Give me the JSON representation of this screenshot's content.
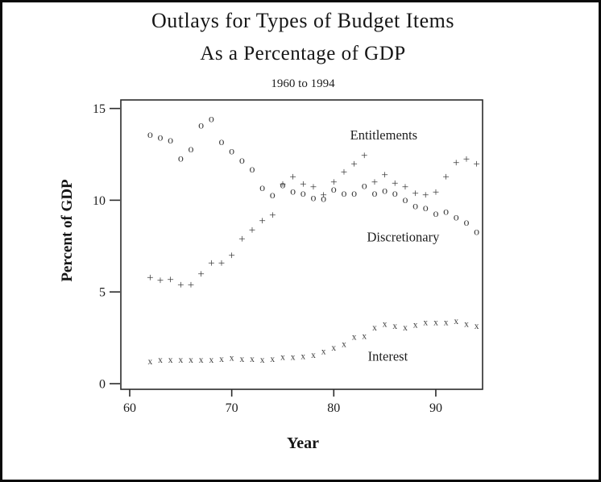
{
  "page": {
    "title_line1": "Outlays for Types of Budget Items",
    "title_line2": "As a Percentage of GDP",
    "subtitle": "1960 to 1994"
  },
  "colors": {
    "ink": "#1d1d1d",
    "marker": "#3d3d3d",
    "frame": "#2b2b2b",
    "background": "#ffffff"
  },
  "chart_data": {
    "type": "scatter",
    "title": "Outlays for Types of Budget Items",
    "subtitle": "As a Percentage of GDP",
    "date_range": "1960 to 1994",
    "xlabel": "Year",
    "ylabel": "Percent of GDP",
    "x_ticks": [
      60,
      70,
      80,
      90
    ],
    "y_ticks": [
      0,
      5,
      10,
      15
    ],
    "xlim": [
      1959,
      1996.5
    ],
    "ylim": [
      -0.3,
      15.4
    ],
    "grid": false,
    "legend_position": "inline-labels",
    "years": [
      1962,
      1963,
      1964,
      1965,
      1966,
      1967,
      1968,
      1969,
      1970,
      1971,
      1972,
      1973,
      1974,
      1975,
      1976,
      1977,
      1978,
      1979,
      1980,
      1981,
      1982,
      1983,
      1984,
      1985,
      1986,
      1987,
      1988,
      1989,
      1990,
      1991,
      1992,
      1993,
      1994
    ],
    "series": [
      {
        "name": "Entitlements",
        "marker": "+",
        "label": {
          "x": 1984.9,
          "y": 13.55
        },
        "values": [
          5.8,
          5.65,
          5.7,
          5.4,
          5.4,
          6.0,
          6.6,
          6.6,
          7.0,
          7.9,
          8.4,
          8.9,
          9.2,
          10.9,
          11.3,
          10.9,
          10.75,
          10.3,
          11.0,
          11.55,
          12.0,
          12.45,
          11.0,
          11.4,
          10.95,
          10.75,
          10.4,
          10.3,
          10.45,
          11.3,
          12.05,
          12.25,
          12.0
        ]
      },
      {
        "name": "Discretionary",
        "marker": "o",
        "label": {
          "x": 1986.8,
          "y": 8.0
        },
        "values": [
          13.6,
          13.45,
          13.3,
          12.3,
          12.8,
          14.1,
          14.45,
          13.2,
          12.7,
          12.2,
          11.7,
          10.7,
          10.3,
          10.85,
          10.5,
          10.4,
          10.15,
          10.1,
          10.6,
          10.4,
          10.4,
          10.8,
          10.4,
          10.55,
          10.4,
          10.05,
          9.7,
          9.6,
          9.3,
          9.4,
          9.1,
          8.8,
          8.3
        ]
      },
      {
        "name": "Interest",
        "marker": "x",
        "label": {
          "x": 1985.3,
          "y": 1.5
        },
        "values": [
          1.2,
          1.3,
          1.3,
          1.3,
          1.3,
          1.3,
          1.3,
          1.35,
          1.4,
          1.35,
          1.35,
          1.3,
          1.35,
          1.45,
          1.45,
          1.5,
          1.55,
          1.75,
          1.95,
          2.15,
          2.55,
          2.6,
          3.05,
          3.25,
          3.15,
          3.05,
          3.2,
          3.35,
          3.35,
          3.35,
          3.4,
          3.25,
          3.15
        ]
      }
    ]
  }
}
